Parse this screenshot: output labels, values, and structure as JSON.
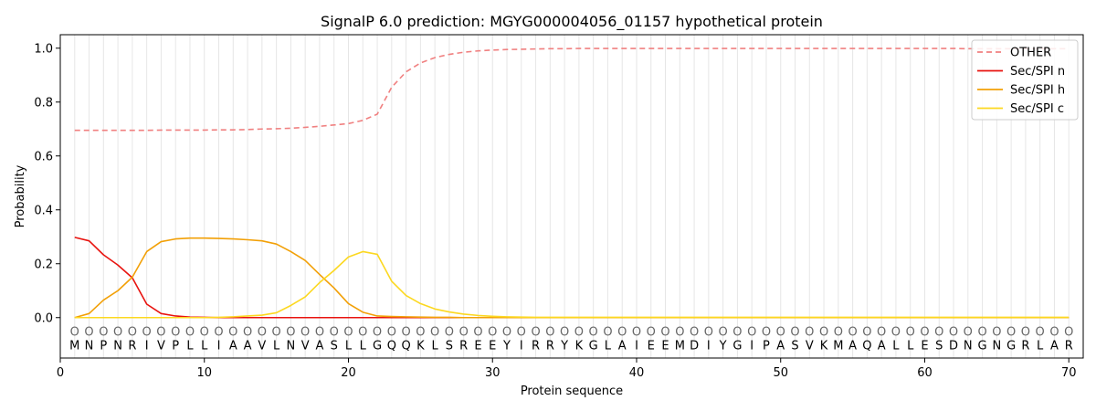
{
  "chart_data": {
    "type": "line",
    "title": "SignalP 6.0 prediction: MGYG000004056_01157 hypothetical protein",
    "xlabel": "Protein sequence",
    "ylabel": "Probability",
    "xlim": [
      0,
      71
    ],
    "ylim": [
      -0.15,
      1.05
    ],
    "x_ticks": [
      0,
      10,
      20,
      30,
      40,
      50,
      60,
      70
    ],
    "y_ticks": [
      0.0,
      0.2,
      0.4,
      0.6,
      0.8,
      1.0
    ],
    "x_tick_labels": [
      "0",
      "10",
      "20",
      "30",
      "40",
      "50",
      "60",
      "70"
    ],
    "y_tick_labels": [
      "0.0",
      "0.2",
      "0.4",
      "0.6",
      "0.8",
      "1.0"
    ],
    "legend_position": "top-right",
    "sequence": [
      "M",
      "N",
      "P",
      "N",
      "R",
      "I",
      "V",
      "P",
      "L",
      "L",
      "I",
      "A",
      "A",
      "V",
      "L",
      "N",
      "V",
      "A",
      "S",
      "L",
      "L",
      "G",
      "Q",
      "Q",
      "K",
      "L",
      "S",
      "R",
      "E",
      "E",
      "Y",
      "I",
      "R",
      "R",
      "Y",
      "K",
      "G",
      "L",
      "A",
      "I",
      "E",
      "E",
      "M",
      "D",
      "I",
      "Y",
      "G",
      "I",
      "P",
      "A",
      "S",
      "V",
      "K",
      "M",
      "A",
      "Q",
      "A",
      "L",
      "L",
      "E",
      "S",
      "D",
      "N",
      "G",
      "N",
      "G",
      "R",
      "L",
      "A",
      "R"
    ],
    "marker_symbol": "O",
    "series": [
      {
        "name": "OTHER",
        "color": "#f08080",
        "dash": "6,4",
        "values": [
          0.695,
          0.695,
          0.695,
          0.695,
          0.695,
          0.695,
          0.696,
          0.696,
          0.696,
          0.696,
          0.697,
          0.697,
          0.698,
          0.7,
          0.701,
          0.703,
          0.706,
          0.71,
          0.715,
          0.72,
          0.732,
          0.755,
          0.855,
          0.912,
          0.945,
          0.965,
          0.977,
          0.985,
          0.99,
          0.993,
          0.995,
          0.996,
          0.997,
          0.998,
          0.998,
          0.999,
          0.999,
          0.999,
          0.999,
          0.999,
          0.999,
          0.999,
          0.999,
          0.999,
          0.999,
          0.999,
          0.999,
          0.999,
          0.999,
          0.999,
          0.999,
          0.999,
          0.999,
          0.999,
          0.999,
          0.999,
          0.999,
          0.999,
          0.999,
          0.999,
          0.999,
          0.999,
          0.998,
          0.998,
          0.998,
          0.998,
          0.998,
          0.998,
          0.998,
          0.998
        ]
      },
      {
        "name": "Sec/SPI n",
        "color": "#e8130f",
        "dash": "",
        "values": [
          0.298,
          0.285,
          0.233,
          0.195,
          0.148,
          0.05,
          0.015,
          0.006,
          0.002,
          0.001,
          0,
          0,
          0,
          0,
          0,
          0,
          0,
          0,
          0,
          0,
          0,
          0,
          0,
          0,
          0,
          0,
          0,
          0,
          0,
          0,
          0,
          0,
          0,
          0,
          0,
          0,
          0,
          0,
          0,
          0,
          0,
          0,
          0,
          0,
          0,
          0,
          0,
          0,
          0,
          0,
          0,
          0,
          0,
          0,
          0,
          0,
          0,
          0,
          0,
          0,
          0,
          0,
          0,
          0,
          0,
          0,
          0,
          0,
          0,
          0
        ]
      },
      {
        "name": "Sec/SPI h",
        "color": "#f2a007",
        "dash": "",
        "values": [
          0,
          0.015,
          0.065,
          0.1,
          0.15,
          0.245,
          0.282,
          0.292,
          0.295,
          0.295,
          0.294,
          0.292,
          0.289,
          0.285,
          0.273,
          0.245,
          0.212,
          0.16,
          0.11,
          0.052,
          0.02,
          0.006,
          0.004,
          0.003,
          0.002,
          0.001,
          0.001,
          0,
          0,
          0,
          0,
          0,
          0,
          0,
          0,
          0,
          0,
          0,
          0,
          0,
          0,
          0,
          0,
          0,
          0,
          0,
          0,
          0,
          0,
          0,
          0,
          0,
          0,
          0,
          0,
          0,
          0,
          0,
          0,
          0,
          0,
          0,
          0,
          0,
          0,
          0,
          0,
          0,
          0,
          0
        ]
      },
      {
        "name": "Sec/SPI c",
        "color": "#fcd820",
        "dash": "",
        "values": [
          0,
          0,
          0,
          0,
          0,
          0,
          0,
          0,
          0,
          0,
          0.001,
          0.003,
          0.006,
          0.009,
          0.018,
          0.045,
          0.077,
          0.13,
          0.175,
          0.225,
          0.245,
          0.235,
          0.135,
          0.082,
          0.052,
          0.032,
          0.021,
          0.013,
          0.008,
          0.005,
          0.003,
          0.002,
          0.001,
          0.001,
          0.001,
          0.001,
          0.001,
          0.001,
          0.001,
          0.001,
          0.001,
          0.001,
          0.001,
          0.001,
          0.001,
          0.001,
          0.001,
          0.001,
          0.001,
          0.001,
          0.001,
          0.001,
          0.001,
          0.001,
          0.001,
          0.001,
          0.001,
          0.001,
          0.001,
          0.001,
          0.001,
          0.001,
          0.001,
          0.001,
          0.001,
          0.001,
          0.001,
          0.001,
          0.001,
          0.001
        ]
      }
    ]
  }
}
